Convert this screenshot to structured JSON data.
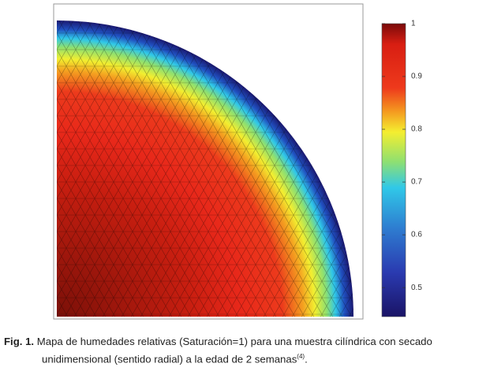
{
  "figure": {
    "colorbar": {
      "range": [
        0.445,
        1
      ],
      "ticks": [
        1,
        0.9,
        0.8,
        0.7,
        0.6,
        0.5
      ]
    }
  },
  "caption": {
    "label": "Fig. 1.",
    "text": "Mapa de humedades relativas (Saturación=1) para una muestra cilíndrica con secado unidimensional (sentido radial) a la edad de 2 semanas",
    "reference": "(4)",
    "period": "."
  }
}
